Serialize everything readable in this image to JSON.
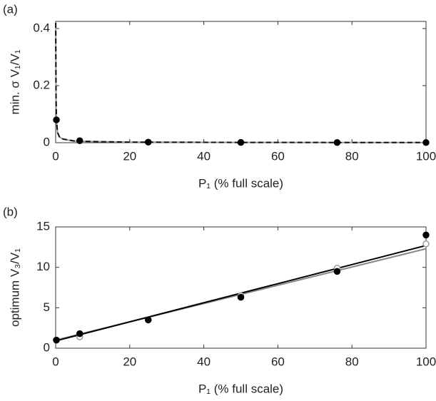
{
  "chart_data": [
    {
      "type": "line",
      "panel_label": "(a)",
      "xlabel": "P₁ (% full scale)",
      "ylabel": "min. σ V₁/V₁",
      "xlim": [
        0,
        100
      ],
      "ylim": [
        0,
        0.425
      ],
      "xticks": [
        0,
        20,
        40,
        60,
        80,
        100
      ],
      "yticks": [
        0,
        0.2,
        0.4
      ],
      "series": [
        {
          "color": "#999999",
          "marker": "none",
          "line": "solid",
          "x": [
            0.02,
            0.05,
            0.1,
            0.2,
            0.5,
            1,
            2,
            5,
            10,
            20,
            50,
            100
          ],
          "values": [
            0.42,
            0.3,
            0.16,
            0.08,
            0.035,
            0.02,
            0.012,
            0.006,
            0.004,
            0.002,
            0.001,
            0.0005
          ]
        },
        {
          "color": "#111111",
          "marker": "none",
          "line": "dashed",
          "x": [
            0.02,
            0.05,
            0.1,
            0.2,
            0.5,
            1,
            2,
            5,
            10,
            20,
            50,
            100
          ],
          "values": [
            0.42,
            0.31,
            0.17,
            0.085,
            0.036,
            0.021,
            0.013,
            0.006,
            0.004,
            0.002,
            0.001,
            0.0005
          ]
        },
        {
          "color": "#000000",
          "marker": "filled",
          "line": "none",
          "x": [
            0.2,
            6.5,
            25,
            50,
            76,
            100
          ],
          "values": [
            0.08,
            0.007,
            0.002,
            0.001,
            0.0007,
            0.0005
          ]
        }
      ]
    },
    {
      "type": "line",
      "panel_label": "(b)",
      "xlabel": "P₁ (% full scale)",
      "ylabel": "optimum V₃/V₁",
      "xlim": [
        0,
        100
      ],
      "ylim": [
        0,
        15
      ],
      "xticks": [
        0,
        20,
        40,
        60,
        80,
        100
      ],
      "yticks": [
        0,
        5,
        10,
        15
      ],
      "series": [
        {
          "color": "#888888",
          "marker": "none",
          "line": "solid",
          "x": [
            0,
            100
          ],
          "values": [
            1.0,
            12.3
          ]
        },
        {
          "color": "#000000",
          "marker": "none",
          "line": "solid",
          "x": [
            0,
            100
          ],
          "values": [
            0.9,
            12.7
          ]
        },
        {
          "color": "#999999",
          "marker": "open",
          "line": "none",
          "x": [
            0.2,
            6.5,
            25,
            50,
            76,
            100
          ],
          "values": [
            1.0,
            1.4,
            3.5,
            6.5,
            9.9,
            12.9
          ]
        },
        {
          "color": "#000000",
          "marker": "filled",
          "line": "none",
          "x": [
            0.2,
            6.5,
            25,
            50,
            76,
            100
          ],
          "values": [
            1.0,
            1.8,
            3.5,
            6.3,
            9.5,
            14
          ]
        }
      ]
    }
  ]
}
